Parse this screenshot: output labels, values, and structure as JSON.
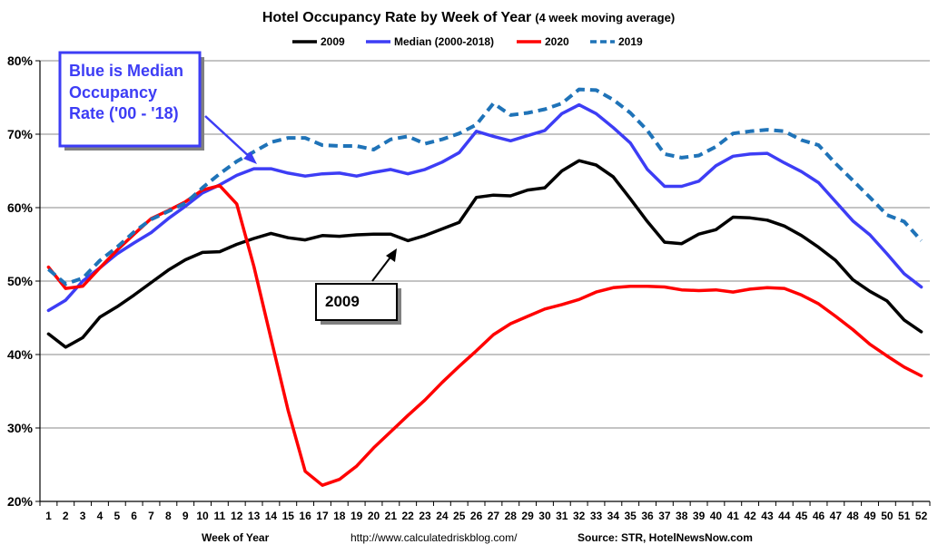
{
  "chart_data": {
    "type": "line",
    "title_main": "Hotel Occupancy Rate by  Week of Year",
    "title_sub": "(4 week moving average)",
    "xlabel": "Week of Year",
    "ylabel": "",
    "ylim": [
      20,
      80
    ],
    "yticks": [
      "20%",
      "30%",
      "40%",
      "50%",
      "60%",
      "70%",
      "80%"
    ],
    "ytick_values": [
      20,
      30,
      40,
      50,
      60,
      70,
      80
    ],
    "x": [
      1,
      2,
      3,
      4,
      5,
      6,
      7,
      8,
      9,
      10,
      11,
      12,
      13,
      14,
      15,
      16,
      17,
      18,
      19,
      20,
      21,
      22,
      23,
      24,
      25,
      26,
      27,
      28,
      29,
      30,
      31,
      32,
      33,
      34,
      35,
      36,
      37,
      38,
      39,
      40,
      41,
      42,
      43,
      44,
      45,
      46,
      47,
      48,
      49,
      50,
      51,
      52
    ],
    "grid": true,
    "legend_position": "top",
    "series": [
      {
        "name": "2009",
        "color": "#000000",
        "dashed": false,
        "values": [
          42.8,
          41.0,
          42.3,
          45.1,
          46.5,
          48.1,
          49.8,
          51.5,
          52.9,
          53.9,
          54.0,
          55.0,
          55.8,
          56.5,
          55.9,
          55.6,
          56.2,
          56.1,
          56.3,
          56.4,
          56.4,
          55.5,
          56.2,
          57.1,
          58.0,
          61.4,
          61.7,
          61.6,
          62.4,
          62.7,
          65.0,
          66.4,
          65.8,
          64.2,
          61.2,
          58.1,
          55.3,
          55.1,
          56.4,
          57.0,
          58.7,
          58.6,
          58.3,
          57.5,
          56.2,
          54.6,
          52.8,
          50.2,
          48.6,
          47.3,
          44.7,
          43.1
        ]
      },
      {
        "name": "Median (2000-2018)",
        "color": "#3d3df5",
        "dashed": false,
        "values": [
          46.0,
          47.4,
          50.0,
          51.8,
          53.7,
          55.2,
          56.6,
          58.5,
          60.2,
          62.0,
          63.1,
          64.4,
          65.3,
          65.3,
          64.7,
          64.3,
          64.6,
          64.7,
          64.3,
          64.8,
          65.2,
          64.6,
          65.2,
          66.2,
          67.5,
          70.4,
          69.7,
          69.1,
          69.8,
          70.5,
          72.8,
          74.0,
          72.8,
          70.9,
          68.8,
          65.2,
          62.9,
          62.9,
          63.6,
          65.7,
          67.0,
          67.3,
          67.4,
          66.1,
          64.9,
          63.4,
          60.8,
          58.2,
          56.3,
          53.7,
          51.0,
          49.2
        ]
      },
      {
        "name": "2020",
        "color": "#ff0000",
        "dashed": false,
        "values": [
          51.9,
          49.0,
          49.3,
          51.8,
          54.2,
          56.4,
          58.5,
          59.6,
          60.8,
          62.4,
          63.0,
          60.5,
          52.0,
          42.2,
          32.4,
          24.1,
          22.2,
          23.0,
          24.8,
          27.3,
          29.5,
          31.7,
          33.8,
          36.2,
          38.4,
          40.5,
          42.7,
          44.2,
          45.2,
          46.2,
          46.8,
          47.5,
          48.5,
          49.1,
          49.3,
          49.3,
          49.2,
          48.8,
          48.7,
          48.8,
          48.5,
          48.9,
          49.1,
          49.0,
          48.1,
          46.9,
          45.2,
          43.4,
          41.4,
          39.8,
          38.3,
          37.1
        ]
      },
      {
        "name": "2019",
        "color": "#1f73b8",
        "dashed": true,
        "values": [
          51.6,
          49.6,
          50.4,
          52.8,
          54.6,
          56.7,
          58.4,
          59.5,
          60.6,
          62.7,
          64.6,
          66.3,
          67.6,
          68.9,
          69.5,
          69.5,
          68.5,
          68.4,
          68.4,
          67.9,
          69.3,
          69.7,
          68.7,
          69.3,
          70.1,
          71.3,
          74.2,
          72.6,
          72.9,
          73.4,
          74.2,
          76.1,
          76.0,
          74.7,
          72.9,
          70.5,
          67.3,
          66.8,
          67.1,
          68.3,
          70.1,
          70.4,
          70.6,
          70.4,
          69.2,
          68.5,
          66.0,
          63.7,
          61.4,
          59.0,
          58.1,
          55.5
        ]
      }
    ]
  },
  "annotations": {
    "blue_box_lines": [
      "Blue is Median",
      "Occupancy",
      "Rate ('00 - '18)"
    ],
    "black_box_label": "2009"
  },
  "footer": {
    "url": "http://www.calculatedriskblog.com/",
    "source": "Source: STR, HotelNewsNow.com"
  }
}
